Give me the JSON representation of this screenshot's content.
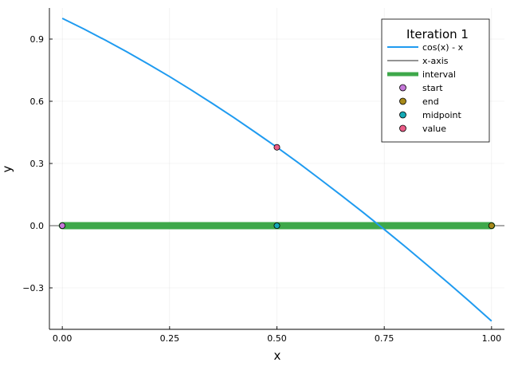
{
  "chart_data": {
    "type": "line",
    "title": "",
    "xlabel": "x",
    "ylabel": "y",
    "xlim": [
      -0.03,
      1.03
    ],
    "ylim": [
      -0.5,
      1.05
    ],
    "grid": true,
    "legend_placement": "top-right",
    "legend_title": "Iteration 1",
    "x_ticks": [
      {
        "value": 0,
        "label": "0.00"
      },
      {
        "value": 0.25,
        "label": "0.25"
      },
      {
        "value": 0.5,
        "label": "0.50"
      },
      {
        "value": 0.75,
        "label": "0.75"
      },
      {
        "value": 1,
        "label": "1.00"
      }
    ],
    "y_ticks": [
      {
        "value": -0.3,
        "label": "−0.3"
      },
      {
        "value": 0,
        "label": "0.0"
      },
      {
        "value": 0.3,
        "label": "0.3"
      },
      {
        "value": 0.6,
        "label": "0.6"
      },
      {
        "value": 0.9,
        "label": "0.9"
      }
    ],
    "series": [
      {
        "name": "cos(x) - x",
        "kind": "line",
        "color": "#1f9bf0",
        "x": [
          0,
          0.05,
          0.1,
          0.15,
          0.2,
          0.25,
          0.3,
          0.35,
          0.4,
          0.45,
          0.5,
          0.55,
          0.6,
          0.65,
          0.7,
          0.75,
          0.8,
          0.85,
          0.9,
          0.95,
          1.0
        ],
        "y": [
          1.0,
          0.949,
          0.895,
          0.839,
          0.78,
          0.719,
          0.655,
          0.589,
          0.521,
          0.45,
          0.378,
          0.303,
          0.225,
          0.146,
          0.065,
          -0.018,
          -0.103,
          -0.19,
          -0.278,
          -0.368,
          -0.46
        ]
      },
      {
        "name": "x-axis",
        "kind": "line",
        "color": "#555555",
        "x": [
          -0.03,
          1.03
        ],
        "y": [
          0,
          0
        ]
      },
      {
        "name": "interval",
        "kind": "band",
        "color": "#3ea84a",
        "x": [
          0,
          1
        ],
        "y": [
          0,
          0
        ]
      },
      {
        "name": "start",
        "kind": "point",
        "color": "#c478d8",
        "x": [
          0
        ],
        "y": [
          0
        ]
      },
      {
        "name": "end",
        "kind": "point",
        "color": "#a78a1a",
        "x": [
          1
        ],
        "y": [
          0
        ]
      },
      {
        "name": "midpoint",
        "kind": "point",
        "color": "#14a9b5",
        "x": [
          0.5
        ],
        "y": [
          0
        ]
      },
      {
        "name": "value",
        "kind": "point",
        "color": "#eb5c87",
        "x": [
          0.5
        ],
        "y": [
          0.378
        ]
      }
    ]
  }
}
